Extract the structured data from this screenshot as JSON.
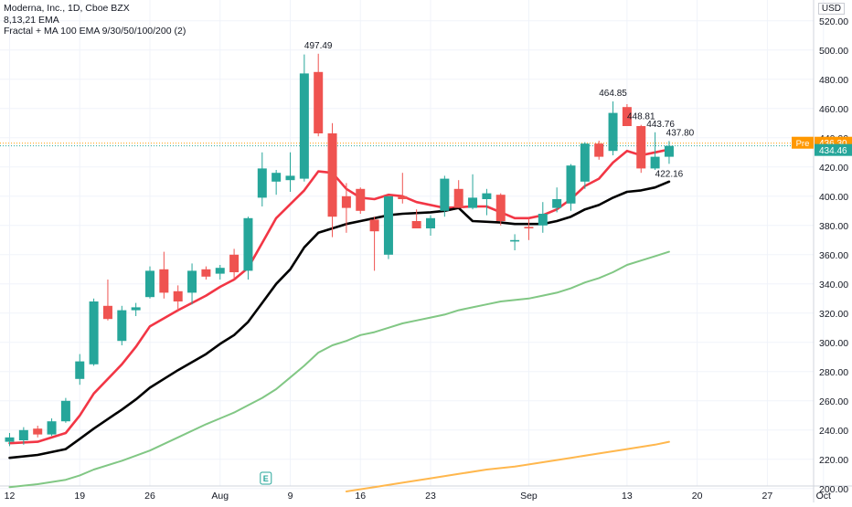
{
  "legend": {
    "title": "Moderna, Inc., 1D, Cboe BZX",
    "line2": "8,13,21 EMA",
    "line3": "Fractal + MA 100 EMA 9/30/50/100/200 (2)"
  },
  "currency": "USD",
  "price_tags": {
    "pre_label": "Pre",
    "pre_value": "436.30",
    "last_value": "434.46",
    "pre_color": "#ff9800",
    "last_color": "#26a69a"
  },
  "earnings_marker": "E",
  "chart_data": {
    "type": "candlestick",
    "ylim": [
      198,
      528
    ],
    "y_ticks": [
      200,
      220,
      240,
      260,
      280,
      300,
      320,
      340,
      360,
      380,
      400,
      420,
      440,
      460,
      480,
      500,
      520
    ],
    "x_ticks": [
      {
        "label": "12",
        "date": "2021-07-12"
      },
      {
        "label": "19",
        "date": "2021-07-19"
      },
      {
        "label": "26",
        "date": "2021-07-26"
      },
      {
        "label": "Aug",
        "date": "2021-08-02"
      },
      {
        "label": "9",
        "date": "2021-08-09"
      },
      {
        "label": "16",
        "date": "2021-08-16"
      },
      {
        "label": "23",
        "date": "2021-08-23"
      },
      {
        "label": "Sep",
        "date": "2021-09-01"
      },
      {
        "label": "13",
        "date": "2021-09-13"
      },
      {
        "label": "20",
        "date": "2021-09-20"
      },
      {
        "label": "27",
        "date": "2021-09-27"
      },
      {
        "label": "Oct",
        "date": "2021-10-01"
      }
    ],
    "candles": [
      {
        "date": "2021-07-12",
        "o": 232,
        "h": 238,
        "l": 229,
        "c": 235
      },
      {
        "date": "2021-07-13",
        "o": 233,
        "h": 242,
        "l": 230,
        "c": 240
      },
      {
        "date": "2021-07-14",
        "o": 241,
        "h": 243,
        "l": 235,
        "c": 237
      },
      {
        "date": "2021-07-15",
        "o": 237,
        "h": 248,
        "l": 236,
        "c": 246
      },
      {
        "date": "2021-07-16",
        "o": 246,
        "h": 262,
        "l": 245,
        "c": 260
      },
      {
        "date": "2021-07-19",
        "o": 275,
        "h": 292,
        "l": 271,
        "c": 287
      },
      {
        "date": "2021-07-20",
        "o": 285,
        "h": 330,
        "l": 284,
        "c": 328
      },
      {
        "date": "2021-07-21",
        "o": 325,
        "h": 343,
        "l": 315,
        "c": 316
      },
      {
        "date": "2021-07-22",
        "o": 301,
        "h": 325,
        "l": 298,
        "c": 322
      },
      {
        "date": "2021-07-23",
        "o": 322,
        "h": 327,
        "l": 318,
        "c": 324
      },
      {
        "date": "2021-07-26",
        "o": 331,
        "h": 352,
        "l": 330,
        "c": 349
      },
      {
        "date": "2021-07-27",
        "o": 350,
        "h": 362,
        "l": 330,
        "c": 334
      },
      {
        "date": "2021-07-28",
        "o": 335,
        "h": 339,
        "l": 321,
        "c": 328
      },
      {
        "date": "2021-07-29",
        "o": 334,
        "h": 354,
        "l": 326,
        "c": 349
      },
      {
        "date": "2021-07-30",
        "o": 350,
        "h": 352,
        "l": 343,
        "c": 345
      },
      {
        "date": "2021-08-02",
        "o": 347,
        "h": 353,
        "l": 343,
        "c": 351
      },
      {
        "date": "2021-08-03",
        "o": 360,
        "h": 364,
        "l": 343,
        "c": 348
      },
      {
        "date": "2021-08-04",
        "o": 349,
        "h": 386,
        "l": 343,
        "c": 385
      },
      {
        "date": "2021-08-05",
        "o": 399,
        "h": 430,
        "l": 393,
        "c": 419
      },
      {
        "date": "2021-08-06",
        "o": 410,
        "h": 418,
        "l": 401,
        "c": 416
      },
      {
        "date": "2021-08-09",
        "o": 411,
        "h": 430,
        "l": 403,
        "c": 414
      },
      {
        "date": "2021-08-10",
        "o": 412,
        "h": 497,
        "l": 410,
        "c": 484
      },
      {
        "date": "2021-08-11",
        "o": 485,
        "h": 497.49,
        "l": 441,
        "c": 443
      },
      {
        "date": "2021-08-12",
        "o": 443,
        "h": 450,
        "l": 372,
        "c": 386
      },
      {
        "date": "2021-08-13",
        "o": 400,
        "h": 409,
        "l": 375,
        "c": 392
      },
      {
        "date": "2021-08-16",
        "o": 405,
        "h": 406,
        "l": 388,
        "c": 390
      },
      {
        "date": "2021-08-17",
        "o": 384,
        "h": 386,
        "l": 349,
        "c": 376
      },
      {
        "date": "2021-08-18",
        "o": 360,
        "h": 400,
        "l": 357,
        "c": 400
      },
      {
        "date": "2021-08-19",
        "o": 400,
        "h": 416,
        "l": 395,
        "c": 398
      },
      {
        "date": "2021-08-20",
        "o": 383,
        "h": 391,
        "l": 378,
        "c": 378
      },
      {
        "date": "2021-08-23",
        "o": 378,
        "h": 387,
        "l": 373,
        "c": 385
      },
      {
        "date": "2021-08-24",
        "o": 390,
        "h": 414,
        "l": 386,
        "c": 412
      },
      {
        "date": "2021-08-25",
        "o": 405,
        "h": 411,
        "l": 392,
        "c": 392
      },
      {
        "date": "2021-08-26",
        "o": 392,
        "h": 415,
        "l": 391,
        "c": 399
      },
      {
        "date": "2021-08-27",
        "o": 398,
        "h": 405,
        "l": 387,
        "c": 402
      },
      {
        "date": "2021-08-30",
        "o": 401,
        "h": 402,
        "l": 380,
        "c": 383
      },
      {
        "date": "2021-08-31",
        "o": 369,
        "h": 374,
        "l": 363,
        "c": 370
      },
      {
        "date": "2021-09-01",
        "o": 379,
        "h": 385,
        "l": 370,
        "c": 378
      },
      {
        "date": "2021-09-02",
        "o": 380,
        "h": 396,
        "l": 375,
        "c": 388
      },
      {
        "date": "2021-09-03",
        "o": 392,
        "h": 406,
        "l": 389,
        "c": 398
      },
      {
        "date": "2021-09-07",
        "o": 395,
        "h": 422,
        "l": 390,
        "c": 421
      },
      {
        "date": "2021-09-08",
        "o": 410,
        "h": 437,
        "l": 405,
        "c": 436
      },
      {
        "date": "2021-09-09",
        "o": 436,
        "h": 438,
        "l": 425,
        "c": 427
      },
      {
        "date": "2021-09-10",
        "o": 431,
        "h": 464.85,
        "l": 428,
        "c": 457
      },
      {
        "date": "2021-09-13",
        "o": 461,
        "h": 463,
        "l": 448,
        "c": 448
      },
      {
        "date": "2021-09-14",
        "o": 448,
        "h": 448.81,
        "l": 416,
        "c": 419
      },
      {
        "date": "2021-09-15",
        "o": 419,
        "h": 443.76,
        "l": 418,
        "c": 427
      },
      {
        "date": "2021-09-16",
        "o": 427,
        "h": 437.8,
        "l": 422.16,
        "c": 434.46
      }
    ],
    "ema_lines": [
      {
        "color": "#f23645",
        "width": 2.6,
        "values": [
          [
            0,
            231
          ],
          [
            2,
            232
          ],
          [
            4,
            238
          ],
          [
            5,
            250
          ],
          [
            6,
            265
          ],
          [
            8,
            285
          ],
          [
            9,
            297
          ],
          [
            10,
            311
          ],
          [
            12,
            322
          ],
          [
            14,
            332
          ],
          [
            15,
            338
          ],
          [
            16,
            343
          ],
          [
            17,
            351
          ],
          [
            18,
            368
          ],
          [
            19,
            385
          ],
          [
            21,
            404
          ],
          [
            22,
            417
          ],
          [
            23,
            416
          ],
          [
            24,
            405
          ],
          [
            25,
            399
          ],
          [
            26,
            398
          ],
          [
            27,
            401
          ],
          [
            28,
            400
          ],
          [
            29,
            396
          ],
          [
            31,
            392
          ],
          [
            33,
            393
          ],
          [
            34,
            393
          ],
          [
            35,
            389
          ],
          [
            36,
            385
          ],
          [
            37,
            385
          ],
          [
            38,
            387
          ],
          [
            39,
            391
          ],
          [
            40,
            398
          ],
          [
            41,
            407
          ],
          [
            42,
            412
          ],
          [
            43,
            423
          ],
          [
            44,
            431
          ],
          [
            45,
            428
          ],
          [
            46,
            430
          ],
          [
            47,
            432
          ]
        ]
      },
      {
        "color": "#000000",
        "width": 2.6,
        "values": [
          [
            0,
            221
          ],
          [
            2,
            223
          ],
          [
            4,
            227
          ],
          [
            5,
            234
          ],
          [
            6,
            241
          ],
          [
            8,
            254
          ],
          [
            9,
            261
          ],
          [
            10,
            269
          ],
          [
            11,
            275
          ],
          [
            12,
            281
          ],
          [
            14,
            292
          ],
          [
            15,
            299
          ],
          [
            16,
            305
          ],
          [
            17,
            314
          ],
          [
            18,
            327
          ],
          [
            19,
            340
          ],
          [
            20,
            350
          ],
          [
            21,
            365
          ],
          [
            22,
            375
          ],
          [
            23,
            378
          ],
          [
            24,
            381
          ],
          [
            25,
            383
          ],
          [
            26,
            385
          ],
          [
            27,
            387
          ],
          [
            28,
            388
          ],
          [
            30,
            389
          ],
          [
            31,
            390
          ],
          [
            32,
            392
          ],
          [
            33,
            383
          ],
          [
            35,
            382
          ],
          [
            36,
            381
          ],
          [
            38,
            381
          ],
          [
            39,
            383
          ],
          [
            40,
            386
          ],
          [
            41,
            391
          ],
          [
            42,
            394
          ],
          [
            43,
            399
          ],
          [
            44,
            403
          ],
          [
            45,
            404
          ],
          [
            46,
            406
          ],
          [
            47,
            410
          ]
        ]
      },
      {
        "color": "#81c784",
        "width": 2,
        "values": [
          [
            0,
            201
          ],
          [
            2,
            203
          ],
          [
            4,
            206
          ],
          [
            5,
            209
          ],
          [
            6,
            213
          ],
          [
            8,
            219
          ],
          [
            10,
            226
          ],
          [
            12,
            235
          ],
          [
            14,
            244
          ],
          [
            15,
            248
          ],
          [
            16,
            252
          ],
          [
            17,
            257
          ],
          [
            18,
            262
          ],
          [
            19,
            268
          ],
          [
            20,
            276
          ],
          [
            21,
            284
          ],
          [
            22,
            293
          ],
          [
            23,
            298
          ],
          [
            24,
            301
          ],
          [
            25,
            305
          ],
          [
            26,
            307
          ],
          [
            27,
            310
          ],
          [
            28,
            313
          ],
          [
            29,
            315
          ],
          [
            30,
            317
          ],
          [
            31,
            319
          ],
          [
            32,
            322
          ],
          [
            33,
            324
          ],
          [
            34,
            326
          ],
          [
            35,
            328
          ],
          [
            36,
            329
          ],
          [
            37,
            330
          ],
          [
            38,
            332
          ],
          [
            39,
            334
          ],
          [
            40,
            337
          ],
          [
            41,
            341
          ],
          [
            42,
            344
          ],
          [
            43,
            348
          ],
          [
            44,
            353
          ],
          [
            45,
            356
          ],
          [
            46,
            359
          ],
          [
            47,
            362
          ]
        ]
      },
      {
        "color": "#ffb74d",
        "width": 2,
        "values": [
          [
            24,
            198
          ],
          [
            26,
            201
          ],
          [
            28,
            204
          ],
          [
            30,
            207
          ],
          [
            32,
            210
          ],
          [
            34,
            213
          ],
          [
            36,
            215
          ],
          [
            38,
            218
          ],
          [
            40,
            221
          ],
          [
            42,
            224
          ],
          [
            44,
            227
          ],
          [
            46,
            230
          ],
          [
            47,
            232
          ]
        ]
      }
    ],
    "price_labels": [
      "497.49",
      "464.85",
      "448.81",
      "443.76",
      "437.80",
      "422.16"
    ]
  }
}
